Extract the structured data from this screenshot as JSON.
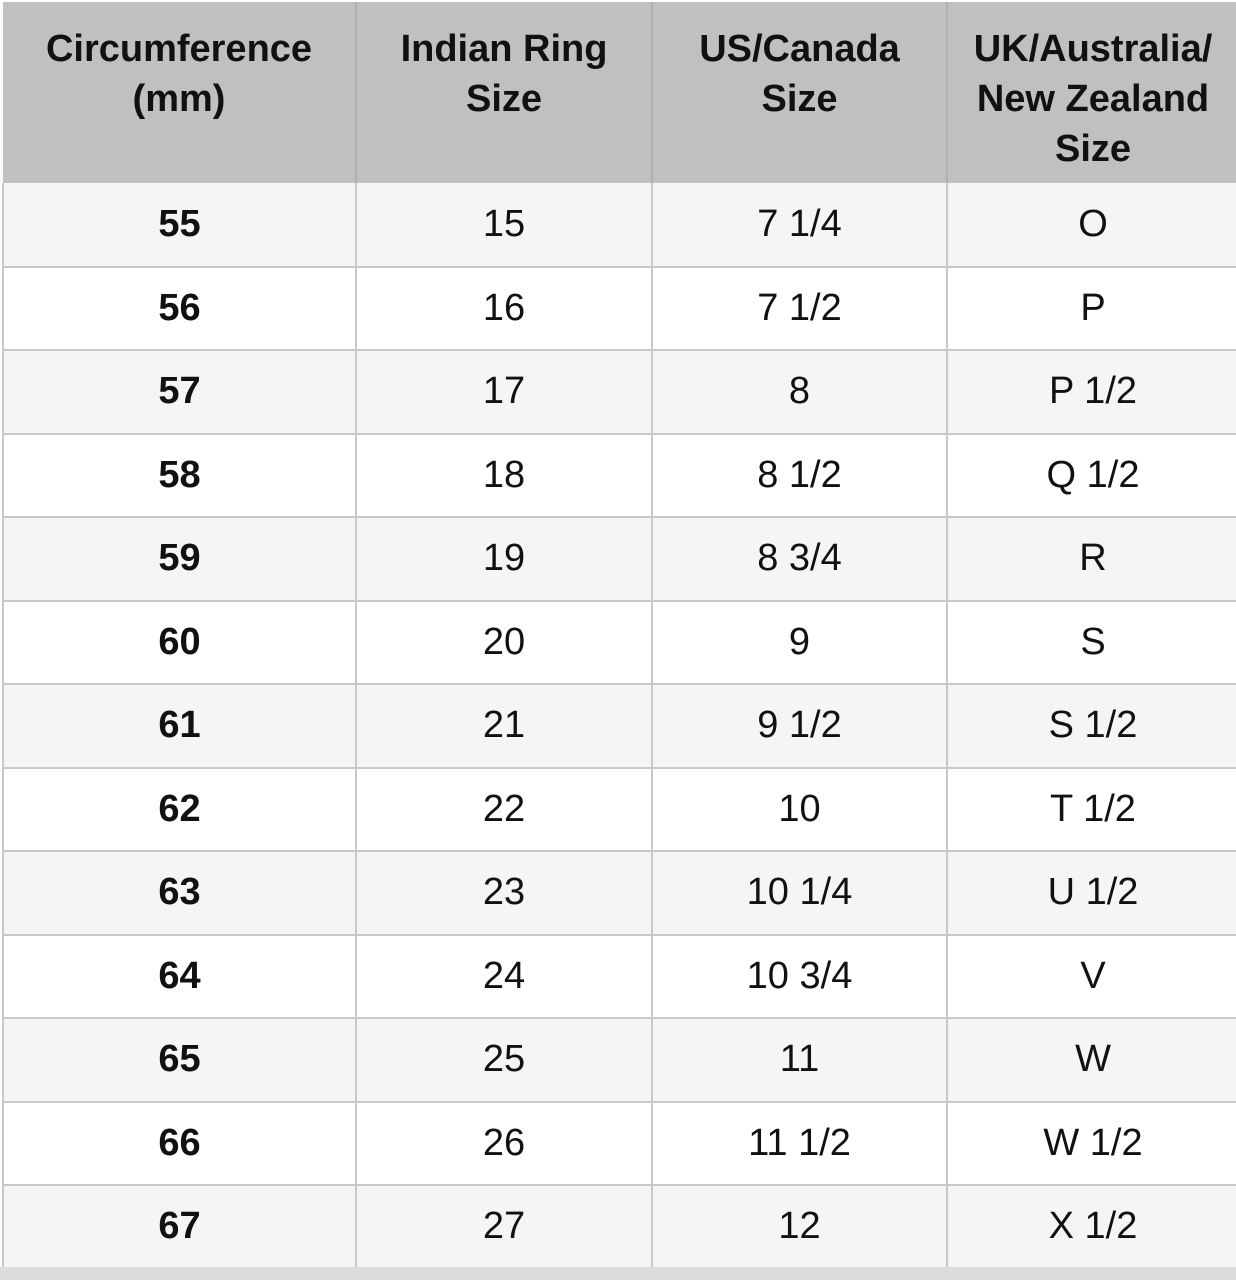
{
  "headers": [
    "Circumference\n(mm)",
    "Indian Ring\nSize",
    "US/Canada\nSize",
    "UK/Australia/\nNew Zealand\nSize"
  ],
  "rows": [
    [
      "55",
      "15",
      "7 1/4",
      "O"
    ],
    [
      "56",
      "16",
      "7 1/2",
      "P"
    ],
    [
      "57",
      "17",
      "8",
      "P 1/2"
    ],
    [
      "58",
      "18",
      "8 1/2",
      "Q 1/2"
    ],
    [
      "59",
      "19",
      "8 3/4",
      "R"
    ],
    [
      "60",
      "20",
      "9",
      "S"
    ],
    [
      "61",
      "21",
      "9 1/2",
      "S 1/2"
    ],
    [
      "62",
      "22",
      "10",
      "T 1/2"
    ],
    [
      "63",
      "23",
      "10 1/4",
      "U 1/2"
    ],
    [
      "64",
      "24",
      "10 3/4",
      "V"
    ],
    [
      "65",
      "25",
      "11",
      "W"
    ],
    [
      "66",
      "26",
      "11 1/2",
      "W 1/2"
    ],
    [
      "67",
      "27",
      "12",
      "X 1/2"
    ]
  ],
  "colors": {
    "header_bg": "#c0c0c0",
    "row_alt_bg": "#f5f5f5",
    "border": "#c8c8c8"
  }
}
